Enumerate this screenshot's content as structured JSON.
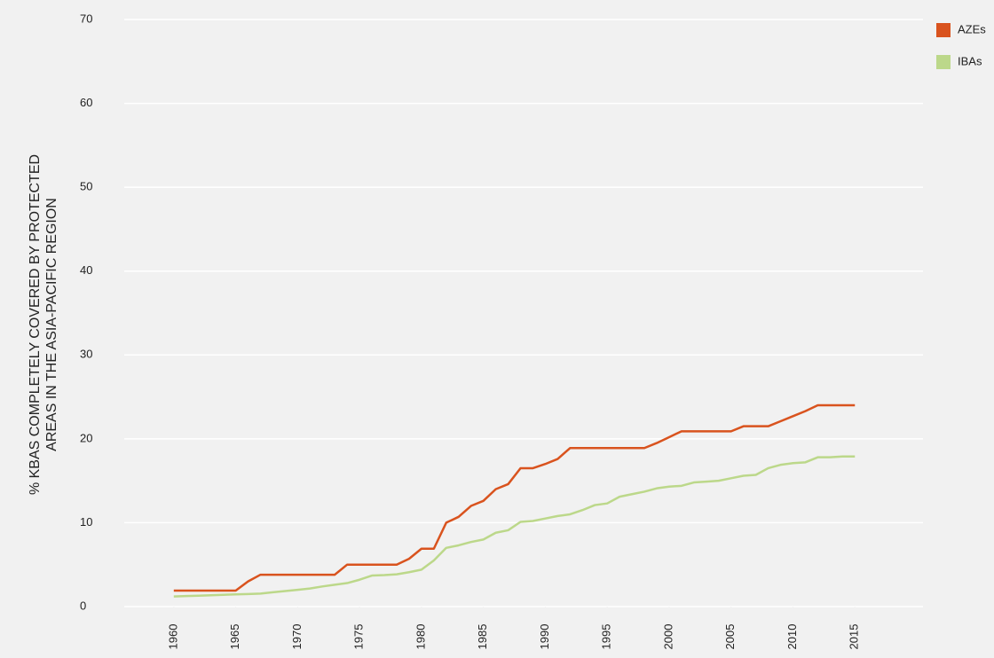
{
  "chart_data": {
    "type": "line",
    "y_label": [
      "% KBAS COMPLETELY COVERED BY PROTECTED",
      "AREAS IN THE ASIA-PACIFIC REGION"
    ],
    "x": [
      1960,
      1961,
      1962,
      1963,
      1964,
      1965,
      1966,
      1967,
      1968,
      1969,
      1970,
      1971,
      1972,
      1973,
      1974,
      1975,
      1976,
      1977,
      1978,
      1979,
      1980,
      1981,
      1982,
      1983,
      1984,
      1985,
      1986,
      1987,
      1988,
      1989,
      1990,
      1991,
      1992,
      1993,
      1994,
      1995,
      1996,
      1997,
      1998,
      1999,
      2000,
      2001,
      2002,
      2003,
      2004,
      2005,
      2006,
      2007,
      2008,
      2009,
      2010,
      2011,
      2012,
      2013,
      2014,
      2015
    ],
    "series": [
      {
        "name": "AZEs",
        "color": "#d9531e",
        "values": [
          1.9,
          1.9,
          1.9,
          1.9,
          1.9,
          1.9,
          3.0,
          3.8,
          3.8,
          3.8,
          3.8,
          3.8,
          3.8,
          3.8,
          5.0,
          5.0,
          5.0,
          5.0,
          5.0,
          5.7,
          6.9,
          6.9,
          10.0,
          10.7,
          12.0,
          12.6,
          14.0,
          14.6,
          16.5,
          16.5,
          17.0,
          17.6,
          18.9,
          18.9,
          18.9,
          18.9,
          18.9,
          18.9,
          18.9,
          19.5,
          20.2,
          20.9,
          20.9,
          20.9,
          20.9,
          20.9,
          21.5,
          21.5,
          21.5,
          22.1,
          22.7,
          23.3,
          24.0,
          24.0,
          24.0,
          24.0
        ]
      },
      {
        "name": "IBAs",
        "color": "#bcd88a",
        "values": [
          1.2,
          1.25,
          1.3,
          1.35,
          1.4,
          1.45,
          1.5,
          1.55,
          1.7,
          1.85,
          2.0,
          2.15,
          2.4,
          2.6,
          2.8,
          3.2,
          3.7,
          3.75,
          3.85,
          4.1,
          4.4,
          5.5,
          7.0,
          7.3,
          7.7,
          8.0,
          8.8,
          9.1,
          10.1,
          10.2,
          10.5,
          10.8,
          11.0,
          11.5,
          12.1,
          12.3,
          13.1,
          13.4,
          13.7,
          14.1,
          14.3,
          14.4,
          14.8,
          14.9,
          15.0,
          15.3,
          15.6,
          15.7,
          16.5,
          16.9,
          17.1,
          17.2,
          17.8,
          17.8,
          17.9,
          17.9
        ]
      }
    ],
    "xlim": [
      1956,
      2020.5
    ],
    "xticks": [
      1960,
      1965,
      1970,
      1975,
      1980,
      1985,
      1990,
      1995,
      2000,
      2005,
      2010,
      2015
    ],
    "ylim": [
      0,
      70
    ],
    "yticks": [
      0,
      10,
      20,
      30,
      40,
      50,
      60,
      70
    ],
    "grid": true,
    "legend": "top-right"
  }
}
